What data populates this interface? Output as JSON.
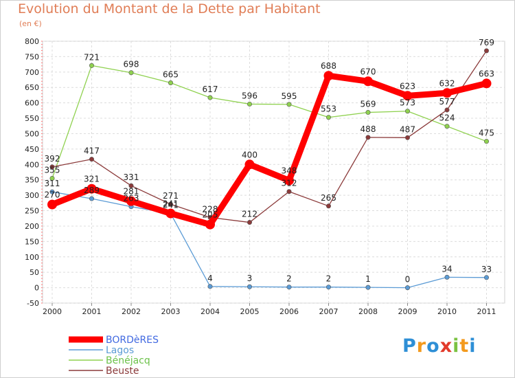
{
  "title": "Evolution du Montant de la Dette par Habitant",
  "unit": "(en €)",
  "logo": {
    "letters": [
      {
        "ch": "P",
        "color": "#2e8fd6"
      },
      {
        "ch": "r",
        "color": "#f39a1e"
      },
      {
        "ch": "o",
        "color": "#2e8fd6"
      },
      {
        "ch": "x",
        "color": "#e23a2a"
      },
      {
        "ch": "i",
        "color": "#7bc242"
      },
      {
        "ch": "t",
        "color": "#f39a1e"
      },
      {
        "ch": "i",
        "color": "#2e8fd6"
      }
    ]
  },
  "chart_data": {
    "type": "line",
    "x": [
      "2000",
      "2001",
      "2002",
      "2003",
      "2004",
      "2005",
      "2006",
      "2007",
      "2008",
      "2009",
      "2010",
      "2011"
    ],
    "ylim": [
      -50,
      800
    ],
    "yticks": [
      -50,
      0,
      50,
      100,
      150,
      200,
      250,
      300,
      350,
      400,
      450,
      500,
      550,
      600,
      650,
      700,
      750,
      800
    ],
    "grid": true,
    "legend": "bottom-left",
    "series": [
      {
        "name": "Lagos",
        "color": "#5b9bd5",
        "legend_color": "#5b9bd5",
        "values": [
          311,
          289,
          263,
          241,
          4,
          3,
          2,
          2,
          1,
          0,
          34,
          33
        ]
      },
      {
        "name": "Bénéjacq",
        "color": "#8fd14f",
        "legend_color": "#6cc24a",
        "values": [
          355,
          721,
          698,
          665,
          617,
          596,
          595,
          553,
          569,
          573,
          524,
          475
        ]
      },
      {
        "name": "Beuste",
        "color": "#8b3a3a",
        "legend_color": "#8b3a3a",
        "values": [
          392,
          417,
          331,
          271,
          228,
          212,
          312,
          265,
          488,
          487,
          577,
          769
        ]
      },
      {
        "name": "BORDèRES",
        "color": "#ff0000",
        "legend_color": "#4169e1",
        "values": [
          270,
          321,
          281,
          241,
          205,
          400,
          348,
          688,
          670,
          623,
          632,
          663
        ],
        "thick": true
      }
    ]
  }
}
